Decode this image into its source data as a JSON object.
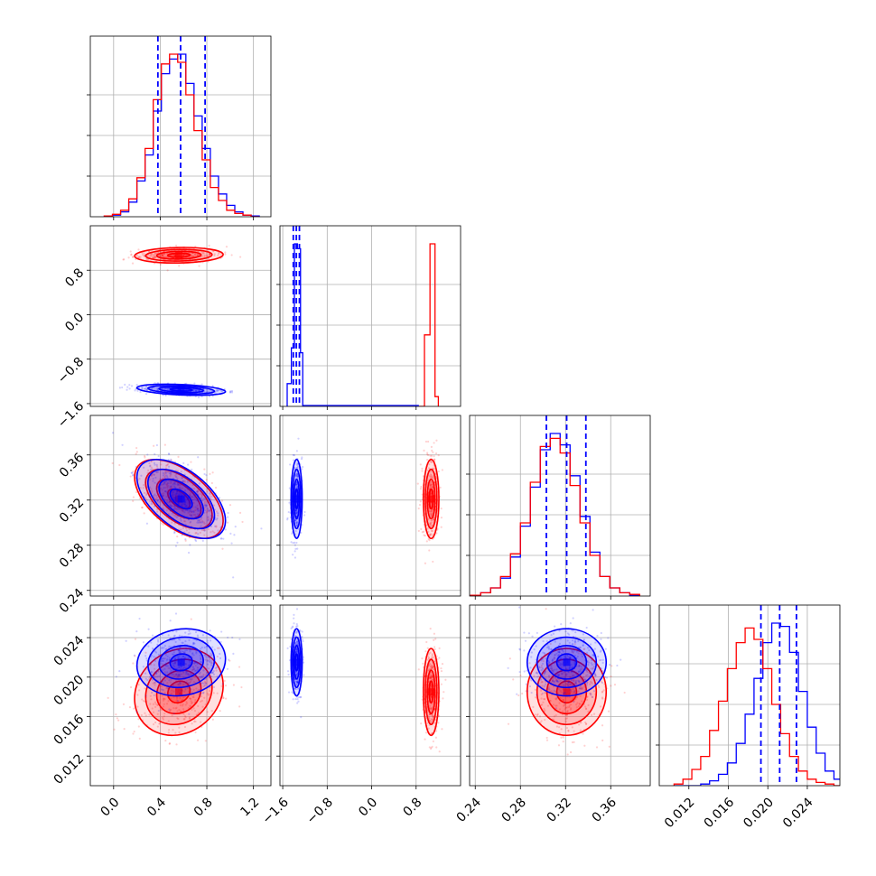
{
  "chart_data": {
    "type": "corner",
    "colors": {
      "red": "#ff0000",
      "blue": "#0000ff"
    },
    "params": [
      {
        "range": [
          -0.2,
          1.35
        ],
        "ticks": [
          "0.0",
          "0.4",
          "0.8",
          "1.2"
        ],
        "tick_values": [
          0.0,
          0.4,
          0.8,
          1.2
        ]
      },
      {
        "range": [
          -1.65,
          1.6
        ],
        "ticks": [
          "−1.6",
          "−0.8",
          "0.0",
          "0.8"
        ],
        "tick_values": [
          -1.6,
          -0.8,
          0.0,
          0.8
        ]
      },
      {
        "range": [
          0.235,
          0.395
        ],
        "ticks": [
          "0.24",
          "0.28",
          "0.32",
          "0.36"
        ],
        "tick_values": [
          0.24,
          0.28,
          0.32,
          0.36
        ]
      },
      {
        "range": [
          0.009,
          0.0273
        ],
        "ticks": [
          "0.012",
          "0.016",
          "0.020",
          "0.024"
        ],
        "tick_values": [
          0.012,
          0.016,
          0.02,
          0.024
        ]
      }
    ],
    "series": [
      {
        "color": "red",
        "means": [
          0.56,
          1.07,
          0.321,
          0.0185
        ],
        "sds": [
          0.19,
          0.07,
          0.0175,
          0.0022
        ],
        "corr": [
          [
            1,
            0.1,
            -0.55,
            0.15
          ],
          [
            0.1,
            1,
            0,
            0
          ],
          [
            -0.55,
            0,
            1,
            0.1
          ],
          [
            0.15,
            0,
            0.1,
            1
          ]
        ]
      },
      {
        "color": "blue",
        "means": [
          0.58,
          -1.35,
          0.321,
          0.0215
        ],
        "sds": [
          0.19,
          0.05,
          0.0175,
          0.0017
        ],
        "corr": [
          [
            1,
            -0.35,
            -0.55,
            0.1
          ],
          [
            -0.35,
            1,
            0,
            0
          ],
          [
            -0.55,
            0,
            1,
            0.05
          ],
          [
            0.1,
            0,
            0.05,
            1
          ]
        ]
      }
    ],
    "quantile_lines": {
      "color": "blue",
      "values": [
        [
          0.38,
          0.575,
          0.785
        ],
        [
          -1.41,
          -1.355,
          -1.3
        ],
        [
          0.303,
          0.321,
          0.338
        ],
        [
          0.0193,
          0.0212,
          0.0229
        ]
      ]
    },
    "histograms": [
      {
        "edges": [
          -0.08,
          -0.01,
          0.06,
          0.13,
          0.2,
          0.27,
          0.34,
          0.41,
          0.48,
          0.55,
          0.62,
          0.69,
          0.76,
          0.83,
          0.9,
          0.97,
          1.04,
          1.11,
          1.18,
          1.25
        ],
        "red": [
          0.005,
          0.015,
          0.04,
          0.11,
          0.24,
          0.42,
          0.72,
          0.94,
          1.0,
          0.95,
          0.75,
          0.53,
          0.35,
          0.18,
          0.1,
          0.04,
          0.02,
          0.01,
          0.0
        ],
        "blue": [
          0.005,
          0.01,
          0.03,
          0.09,
          0.22,
          0.38,
          0.65,
          0.88,
          0.97,
          1.0,
          0.82,
          0.62,
          0.42,
          0.25,
          0.14,
          0.07,
          0.03,
          0.01,
          0.005
        ]
      },
      {
        "edges": [
          -1.52,
          -1.445,
          -1.39,
          -1.335,
          -1.28,
          -1.24,
          0.85,
          0.95,
          1.05,
          1.14,
          1.2
        ],
        "blue_range": [
          0,
          5
        ],
        "red_range": [
          6,
          9
        ],
        "blue": [
          0.14,
          0.36,
          1.0,
          0.97,
          0.33
        ],
        "red": [
          0.0,
          0.44,
          1.0,
          0.06
        ]
      },
      {
        "edges": [
          0.236,
          0.2448,
          0.2536,
          0.2624,
          0.2712,
          0.28,
          0.2888,
          0.2976,
          0.3064,
          0.3152,
          0.324,
          0.3328,
          0.3416,
          0.3504,
          0.3592,
          0.368,
          0.3768,
          0.3856
        ],
        "red": [
          0.005,
          0.02,
          0.05,
          0.12,
          0.26,
          0.45,
          0.7,
          0.92,
          0.97,
          0.88,
          0.68,
          0.45,
          0.25,
          0.12,
          0.05,
          0.02,
          0.01
        ],
        "blue": [
          0.005,
          0.02,
          0.05,
          0.11,
          0.24,
          0.43,
          0.67,
          0.9,
          1.0,
          0.93,
          0.74,
          0.49,
          0.27,
          0.12,
          0.05,
          0.02,
          0.005
        ]
      },
      {
        "edges": [
          0.0105,
          0.0114,
          0.0123,
          0.0132,
          0.0141,
          0.015,
          0.0159,
          0.0168,
          0.0177,
          0.0186,
          0.0195,
          0.0204,
          0.0213,
          0.0222,
          0.0231,
          0.024,
          0.0249,
          0.0258,
          0.0267,
          0.0276
        ],
        "red": [
          0.01,
          0.04,
          0.1,
          0.18,
          0.34,
          0.52,
          0.72,
          0.88,
          0.97,
          0.9,
          0.72,
          0.5,
          0.32,
          0.18,
          0.09,
          0.04,
          0.02,
          0.01,
          0.0
        ],
        "blue": [
          0.0,
          0.0,
          0.0,
          0.01,
          0.03,
          0.07,
          0.14,
          0.26,
          0.44,
          0.66,
          0.88,
          1.0,
          0.98,
          0.82,
          0.58,
          0.36,
          0.2,
          0.09,
          0.04
        ]
      }
    ]
  }
}
